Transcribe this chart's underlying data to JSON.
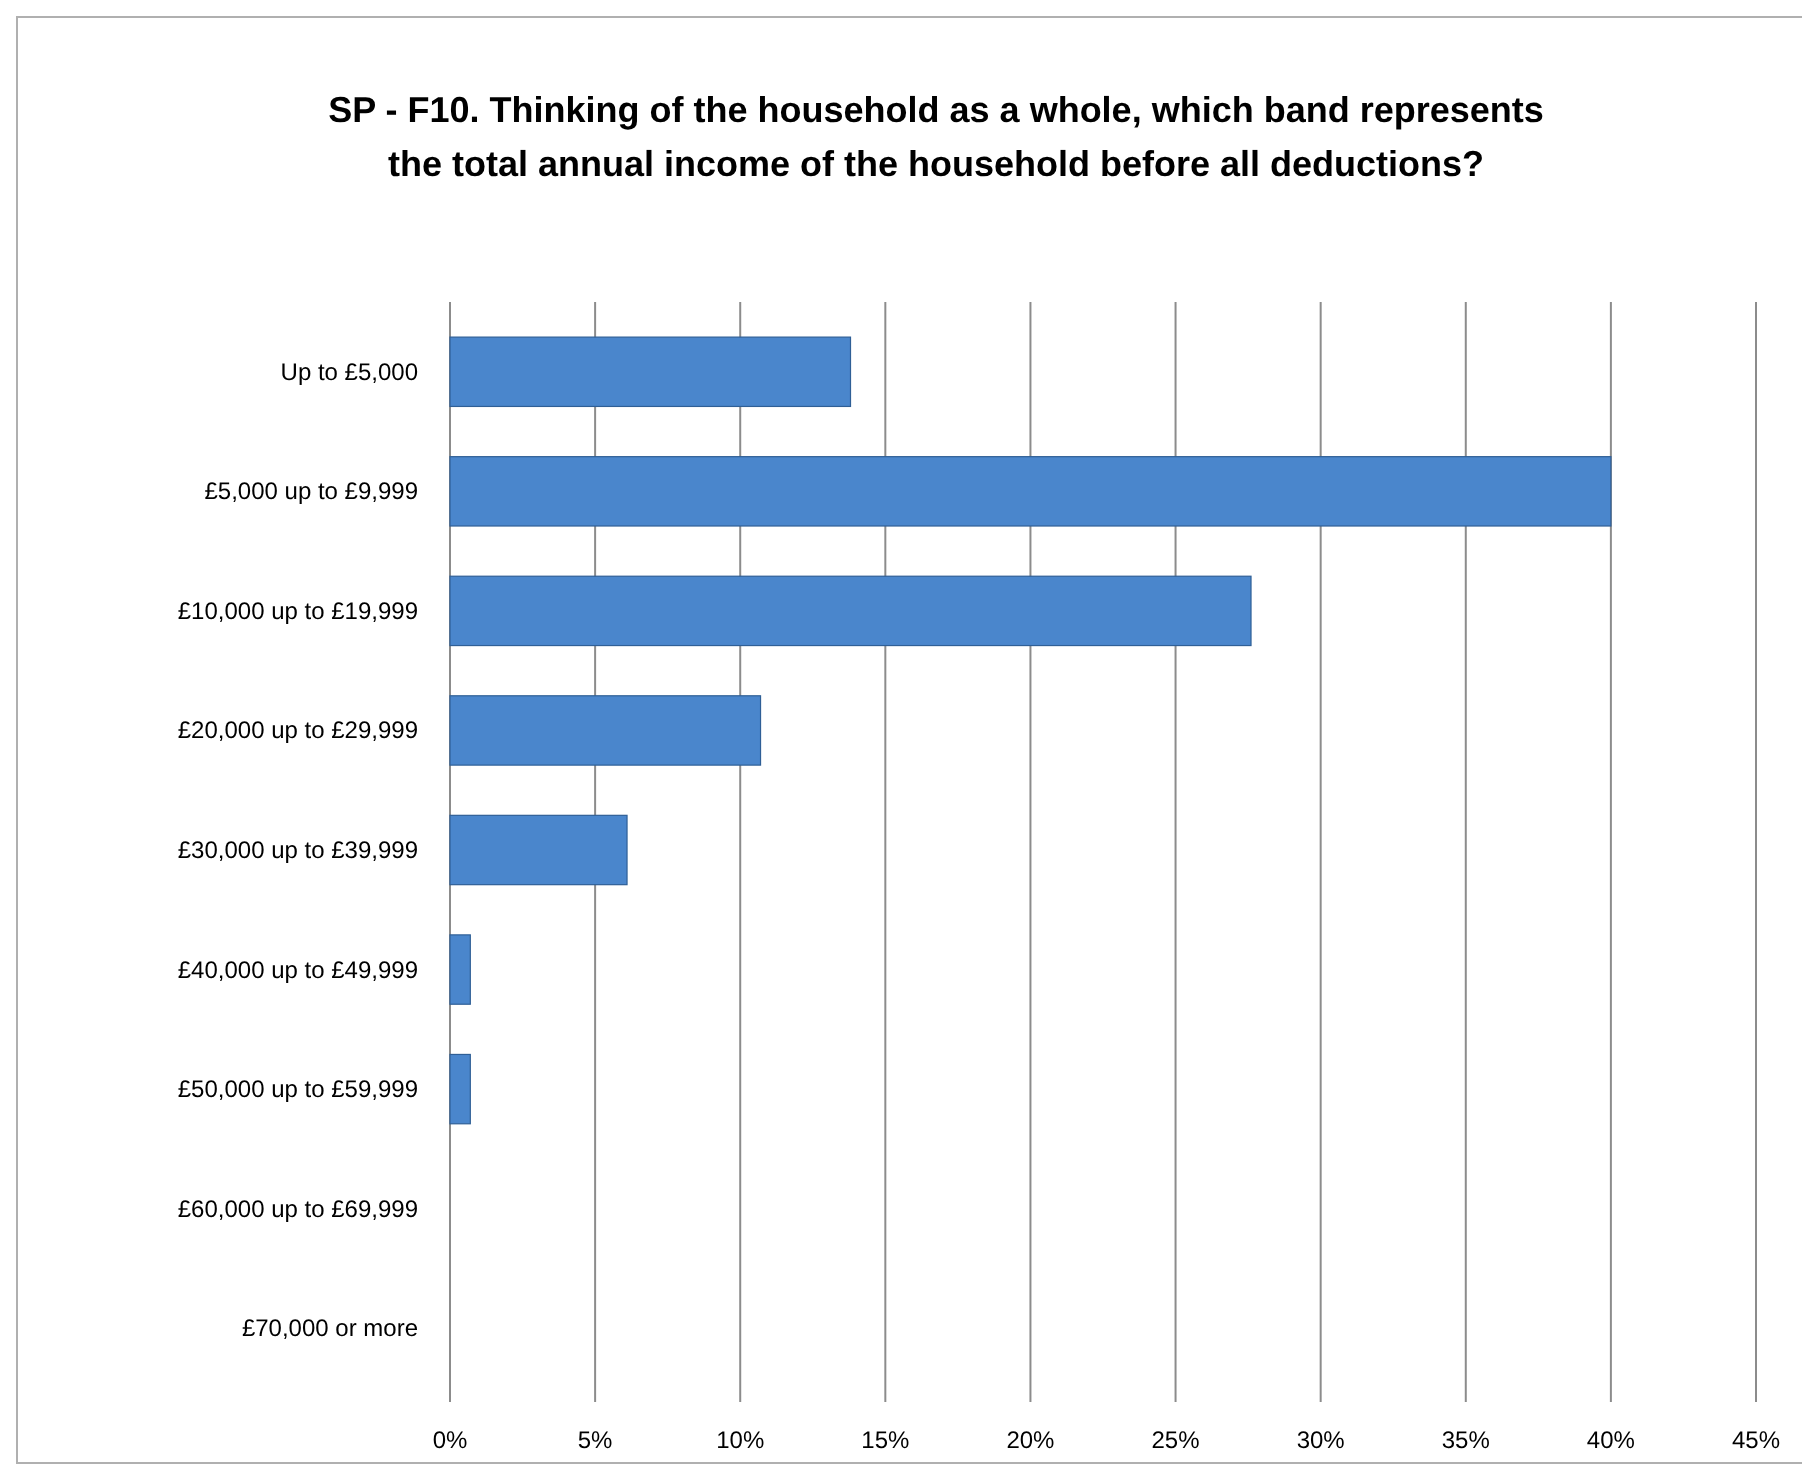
{
  "chart_data": {
    "type": "bar",
    "orientation": "horizontal",
    "title": "SP - F10. Thinking of the household as a whole, which band represents the total annual income of the household before all deductions?",
    "categories": [
      "Up to £5,000",
      "£5,000 up to £9,999",
      "£10,000 up to £19,999",
      "£20,000 up to £29,999",
      "£30,000 up to £39,999",
      "£40,000 up to £49,999",
      "£50,000 up to £59,999",
      "£60,000 up to £69,999",
      "£70,000 or more"
    ],
    "values": [
      13.8,
      40,
      27.6,
      10.7,
      6.1,
      0.7,
      0.7,
      0,
      0
    ],
    "color": "#4a86cc",
    "xlim": [
      0,
      45
    ],
    "xticks": [
      {
        "value": 0,
        "label": "0%"
      },
      {
        "value": 5,
        "label": "5%"
      },
      {
        "value": 10,
        "label": "10%"
      },
      {
        "value": 15,
        "label": "15%"
      },
      {
        "value": 20,
        "label": "20%"
      },
      {
        "value": 25,
        "label": "25%"
      },
      {
        "value": 30,
        "label": "30%"
      },
      {
        "value": 35,
        "label": "35%"
      },
      {
        "value": 40,
        "label": "40%"
      },
      {
        "value": 45,
        "label": "45%"
      }
    ],
    "grid": "x"
  }
}
